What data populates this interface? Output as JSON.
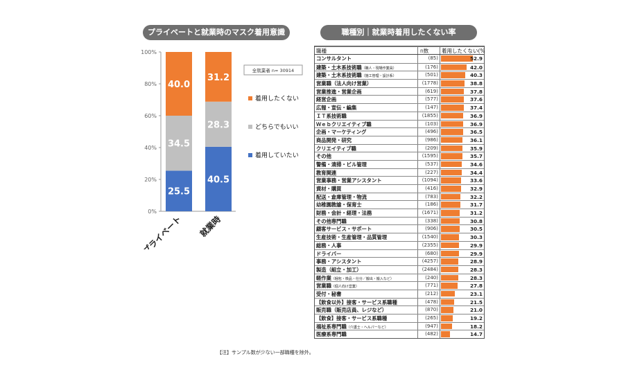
{
  "left_title": "プライベートと就業時のマスク着用意識",
  "right_title": "職種別｜就業時着用したくない率",
  "sample_note": "全就業者 n= 30914",
  "footnote": "【注】サンプル数が少ない一部職種を除外。",
  "colors": {
    "orange": "#ef7d31",
    "gray": "#c0c0c0",
    "blue": "#4472c4"
  },
  "chart_data": [
    {
      "type": "bar",
      "stacked": true,
      "categories": [
        "プライベート",
        "就業時"
      ],
      "series": [
        {
          "name": "着用していたい",
          "values": [
            25.5,
            40.5
          ],
          "color": "#4472c4"
        },
        {
          "name": "どちらでもいい",
          "values": [
            34.5,
            28.3
          ],
          "color": "#c0c0c0"
        },
        {
          "name": "着用したくない",
          "values": [
            40.0,
            31.2
          ],
          "color": "#ef7d31"
        }
      ],
      "yticks": [
        "0%",
        "20%",
        "40%",
        "60%",
        "80%",
        "100%"
      ],
      "ylim": [
        0,
        100
      ],
      "legend": "right"
    },
    {
      "type": "table",
      "columns": [
        "職種",
        "n数",
        "着用したくない(%"
      ],
      "rows": [
        {
          "name": "コンサルタント",
          "sub": "",
          "n": "(85)",
          "value": 52.9
        },
        {
          "name": "建築・土木系技術職",
          "sub": "（職人・現場作業員）",
          "n": "(176)",
          "value": 42.0
        },
        {
          "name": "建築・土木系技術職",
          "sub": "（施工管理・設計系）",
          "n": "(501)",
          "value": 40.3
        },
        {
          "name": "営業職（法人向け営業）",
          "sub": "",
          "n": "(1778)",
          "value": 38.8
        },
        {
          "name": "営業推進・営業企画",
          "sub": "",
          "n": "(619)",
          "value": 37.8
        },
        {
          "name": "経営企画",
          "sub": "",
          "n": "(577)",
          "value": 37.6
        },
        {
          "name": "広報・宣伝・編集",
          "sub": "",
          "n": "(147)",
          "value": 37.4
        },
        {
          "name": "ＩＴ系技術職",
          "sub": "",
          "n": "(1855)",
          "value": 36.9
        },
        {
          "name": "Ｗｅｂクリエイティブ職",
          "sub": "",
          "n": "(103)",
          "value": 36.9
        },
        {
          "name": "企画・マーケティング",
          "sub": "",
          "n": "(496)",
          "value": 36.5
        },
        {
          "name": "商品開発・研究",
          "sub": "",
          "n": "(986)",
          "value": 36.1
        },
        {
          "name": "クリエイティブ職",
          "sub": "",
          "n": "(209)",
          "value": 35.9
        },
        {
          "name": "その他",
          "sub": "",
          "n": "(1595)",
          "value": 35.7
        },
        {
          "name": "警備・清掃・ビル管理",
          "sub": "",
          "n": "(537)",
          "value": 34.6
        },
        {
          "name": "教育関連",
          "sub": "",
          "n": "(227)",
          "value": 34.4
        },
        {
          "name": "営業事務・営業アシスタント",
          "sub": "",
          "n": "(1094)",
          "value": 33.6
        },
        {
          "name": "資材・購買",
          "sub": "",
          "n": "(416)",
          "value": 32.9
        },
        {
          "name": "配送・倉庫管理・物流",
          "sub": "",
          "n": "(783)",
          "value": 32.2
        },
        {
          "name": "幼稚園教諭・保育士",
          "sub": "",
          "n": "(186)",
          "value": 31.7
        },
        {
          "name": "財務・会計・経理・法務",
          "sub": "",
          "n": "(1671)",
          "value": 31.2
        },
        {
          "name": "その他専門職",
          "sub": "",
          "n": "(338)",
          "value": 30.8
        },
        {
          "name": "顧客サービス・サポート",
          "sub": "",
          "n": "(906)",
          "value": 30.5
        },
        {
          "name": "生産技術・生産管理・品質管理",
          "sub": "",
          "n": "(1540)",
          "value": 30.3
        },
        {
          "name": "総務・人事",
          "sub": "",
          "n": "(2355)",
          "value": 29.9
        },
        {
          "name": "ドライバー",
          "sub": "",
          "n": "(680)",
          "value": 29.9
        },
        {
          "name": "事務・アシスタント",
          "sub": "",
          "n": "(4257)",
          "value": 28.9
        },
        {
          "name": "製造（組立・加工）",
          "sub": "",
          "n": "(2484)",
          "value": 28.3
        },
        {
          "name": "軽作業",
          "sub": "（梱包・検品・仕分／搬出・搬入など）",
          "n": "(240)",
          "value": 28.3
        },
        {
          "name": "営業職",
          "sub": "（個人向け営業）",
          "n": "(771)",
          "value": 27.8
        },
        {
          "name": "受付・秘書",
          "sub": "",
          "n": "(212)",
          "value": 23.1
        },
        {
          "name": "【飲食以外】接客・サービス系職種",
          "sub": "",
          "n": "(478)",
          "value": 21.5
        },
        {
          "name": "販売職（販売店員、レジなど）",
          "sub": "",
          "n": "(870)",
          "value": 21.0
        },
        {
          "name": "【飲食】接客・サービス系職種",
          "sub": "",
          "n": "(265)",
          "value": 19.2
        },
        {
          "name": "福祉系専門職",
          "sub": "（介護士・ヘルパーなど）",
          "n": "(947)",
          "value": 18.2
        },
        {
          "name": "医療系専門職",
          "sub": "",
          "n": "(482)",
          "value": 14.7
        }
      ]
    }
  ]
}
